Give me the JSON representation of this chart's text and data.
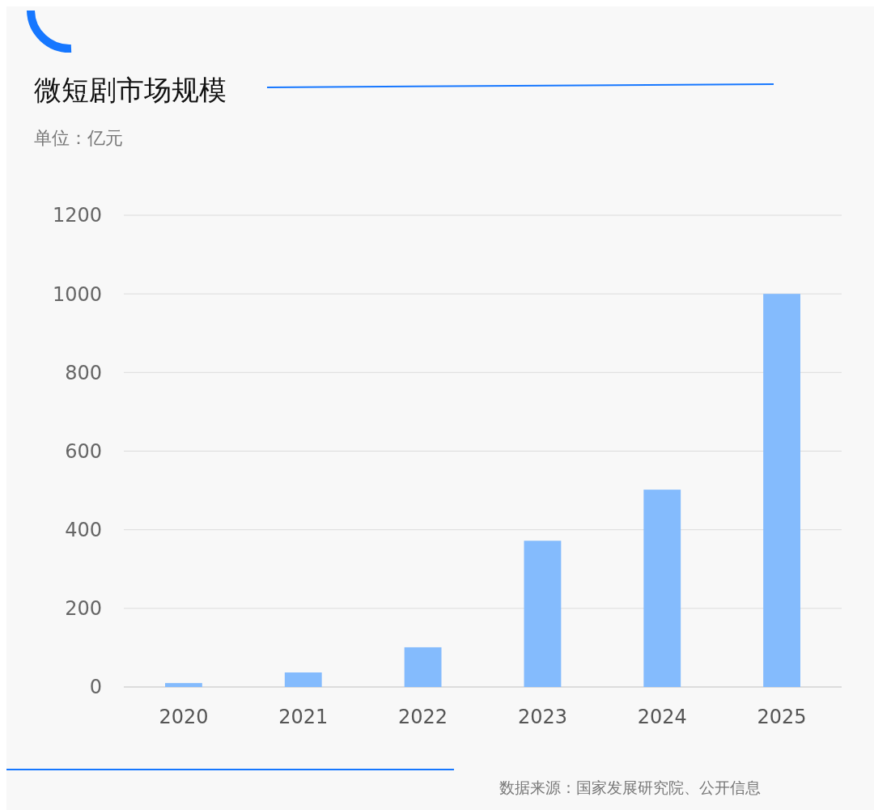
{
  "chart_data": {
    "type": "bar",
    "title": "微短剧市场规模",
    "subtitle": "单位：亿元",
    "categories": [
      "2020",
      "2021",
      "2022",
      "2023",
      "2024",
      "2025"
    ],
    "values": [
      10,
      37,
      101,
      372,
      502,
      1000
    ],
    "color": "#84bbfd",
    "ylim": [
      0,
      1200
    ],
    "yticks": [
      0,
      200,
      400,
      600,
      800,
      1000,
      1200
    ],
    "grid": "y",
    "annotations": [
      "数据来源：国家发展研究院、公开信息"
    ]
  }
}
